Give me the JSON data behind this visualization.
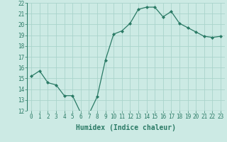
{
  "x": [
    0,
    1,
    2,
    3,
    4,
    5,
    6,
    7,
    8,
    9,
    10,
    11,
    12,
    13,
    14,
    15,
    16,
    17,
    18,
    19,
    20,
    21,
    22,
    23
  ],
  "y": [
    15.2,
    15.7,
    14.6,
    14.4,
    13.4,
    13.4,
    11.8,
    11.7,
    13.3,
    16.7,
    19.1,
    19.4,
    20.1,
    21.4,
    21.6,
    21.6,
    20.7,
    21.2,
    20.1,
    19.7,
    19.3,
    18.9,
    18.8,
    18.9
  ],
  "line_color": "#2a7a65",
  "marker": "D",
  "marker_size": 2,
  "bg_color": "#cceae4",
  "grid_color": "#aad4cc",
  "xlabel": "Humidex (Indice chaleur)",
  "xlabel_fontsize": 7,
  "tick_fontsize": 5.5,
  "ylim": [
    12,
    22
  ],
  "xlim": [
    -0.5,
    23.5
  ],
  "yticks": [
    12,
    13,
    14,
    15,
    16,
    17,
    18,
    19,
    20,
    21,
    22
  ],
  "xticks": [
    0,
    1,
    2,
    3,
    4,
    5,
    6,
    7,
    8,
    9,
    10,
    11,
    12,
    13,
    14,
    15,
    16,
    17,
    18,
    19,
    20,
    21,
    22,
    23
  ]
}
